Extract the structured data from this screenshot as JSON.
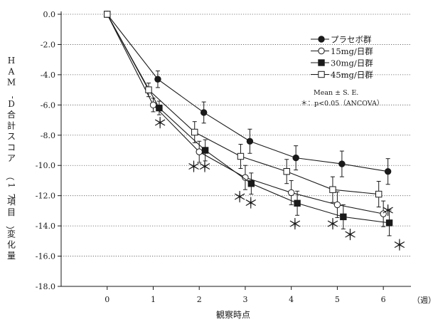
{
  "chart_data": {
    "type": "line",
    "xlabel": "観察時点",
    "x_unit": "（週）",
    "ylabel": "HAM-D合計スコア（17項目）変化量",
    "ylim": [
      -18.0,
      0.0
    ],
    "xlim": [
      -1,
      6.6
    ],
    "y_ticks": [
      "0.0",
      "-2.0",
      "-4.0",
      "-6.0",
      "-8.0",
      "-10.0",
      "-12.0",
      "-14.0",
      "-16.0",
      "-18.0"
    ],
    "y_tick_values": [
      0,
      -2,
      -4,
      -6,
      -8,
      -10,
      -12,
      -14,
      -16,
      -18
    ],
    "x_ticks": [
      "0",
      "1",
      "2",
      "3",
      "4",
      "5",
      "6"
    ],
    "x_tick_values": [
      0,
      1,
      2,
      3,
      4,
      5,
      6
    ],
    "grid": "horizontal-dotted",
    "legend_position": "top-right",
    "x": [
      0,
      1,
      2,
      3,
      4,
      5,
      6
    ],
    "series": [
      {
        "name": "プラセボ群",
        "marker": "filled-circle",
        "values": [
          0.0,
          -4.3,
          -6.5,
          -8.4,
          -9.5,
          -9.9,
          -10.4
        ],
        "errors": [
          0,
          0.55,
          0.7,
          0.8,
          0.8,
          0.85,
          0.85
        ],
        "x_offset": 0.1
      },
      {
        "name": "15mg/日群",
        "marker": "open-circle",
        "values": [
          0.0,
          -6.0,
          -9.1,
          -10.8,
          -11.8,
          -12.6,
          -13.2
        ],
        "errors": [
          0,
          0.45,
          0.7,
          0.8,
          0.8,
          0.85,
          0.85
        ],
        "x_offset": 0.0
      },
      {
        "name": "30mg/日群",
        "marker": "filled-square",
        "values": [
          0.0,
          -6.2,
          -9.0,
          -11.2,
          -12.5,
          -13.4,
          -13.8
        ],
        "errors": [
          0,
          0.45,
          0.7,
          0.7,
          0.8,
          0.8,
          0.85
        ],
        "x_offset": 0.13
      },
      {
        "name": "45mg/日群",
        "marker": "open-square",
        "values": [
          0.0,
          -5.0,
          -7.8,
          -9.4,
          -10.4,
          -11.6,
          -11.9
        ],
        "errors": [
          0,
          0.45,
          0.7,
          0.8,
          0.8,
          0.85,
          0.85
        ],
        "x_offset": -0.1
      }
    ],
    "annotations": {
      "stats_note": [
        "Mean ± S. E.",
        "＊：p<0.05（ANCOVA）"
      ],
      "significance_marker": "＊",
      "significance": [
        {
          "x": 1.15,
          "y": -7.2
        },
        {
          "x": 1.88,
          "y": -10.1
        },
        {
          "x": 2.12,
          "y": -10.1
        },
        {
          "x": 2.88,
          "y": -12.1
        },
        {
          "x": 3.12,
          "y": -12.5
        },
        {
          "x": 4.08,
          "y": -13.9
        },
        {
          "x": 4.9,
          "y": -13.9
        },
        {
          "x": 5.28,
          "y": -14.6
        },
        {
          "x": 6.1,
          "y": -13.0
        },
        {
          "x": 6.35,
          "y": -15.3
        }
      ]
    },
    "colors": {
      "line": "#1a1a1a",
      "grid": "#555555",
      "background": "#ffffff"
    }
  }
}
